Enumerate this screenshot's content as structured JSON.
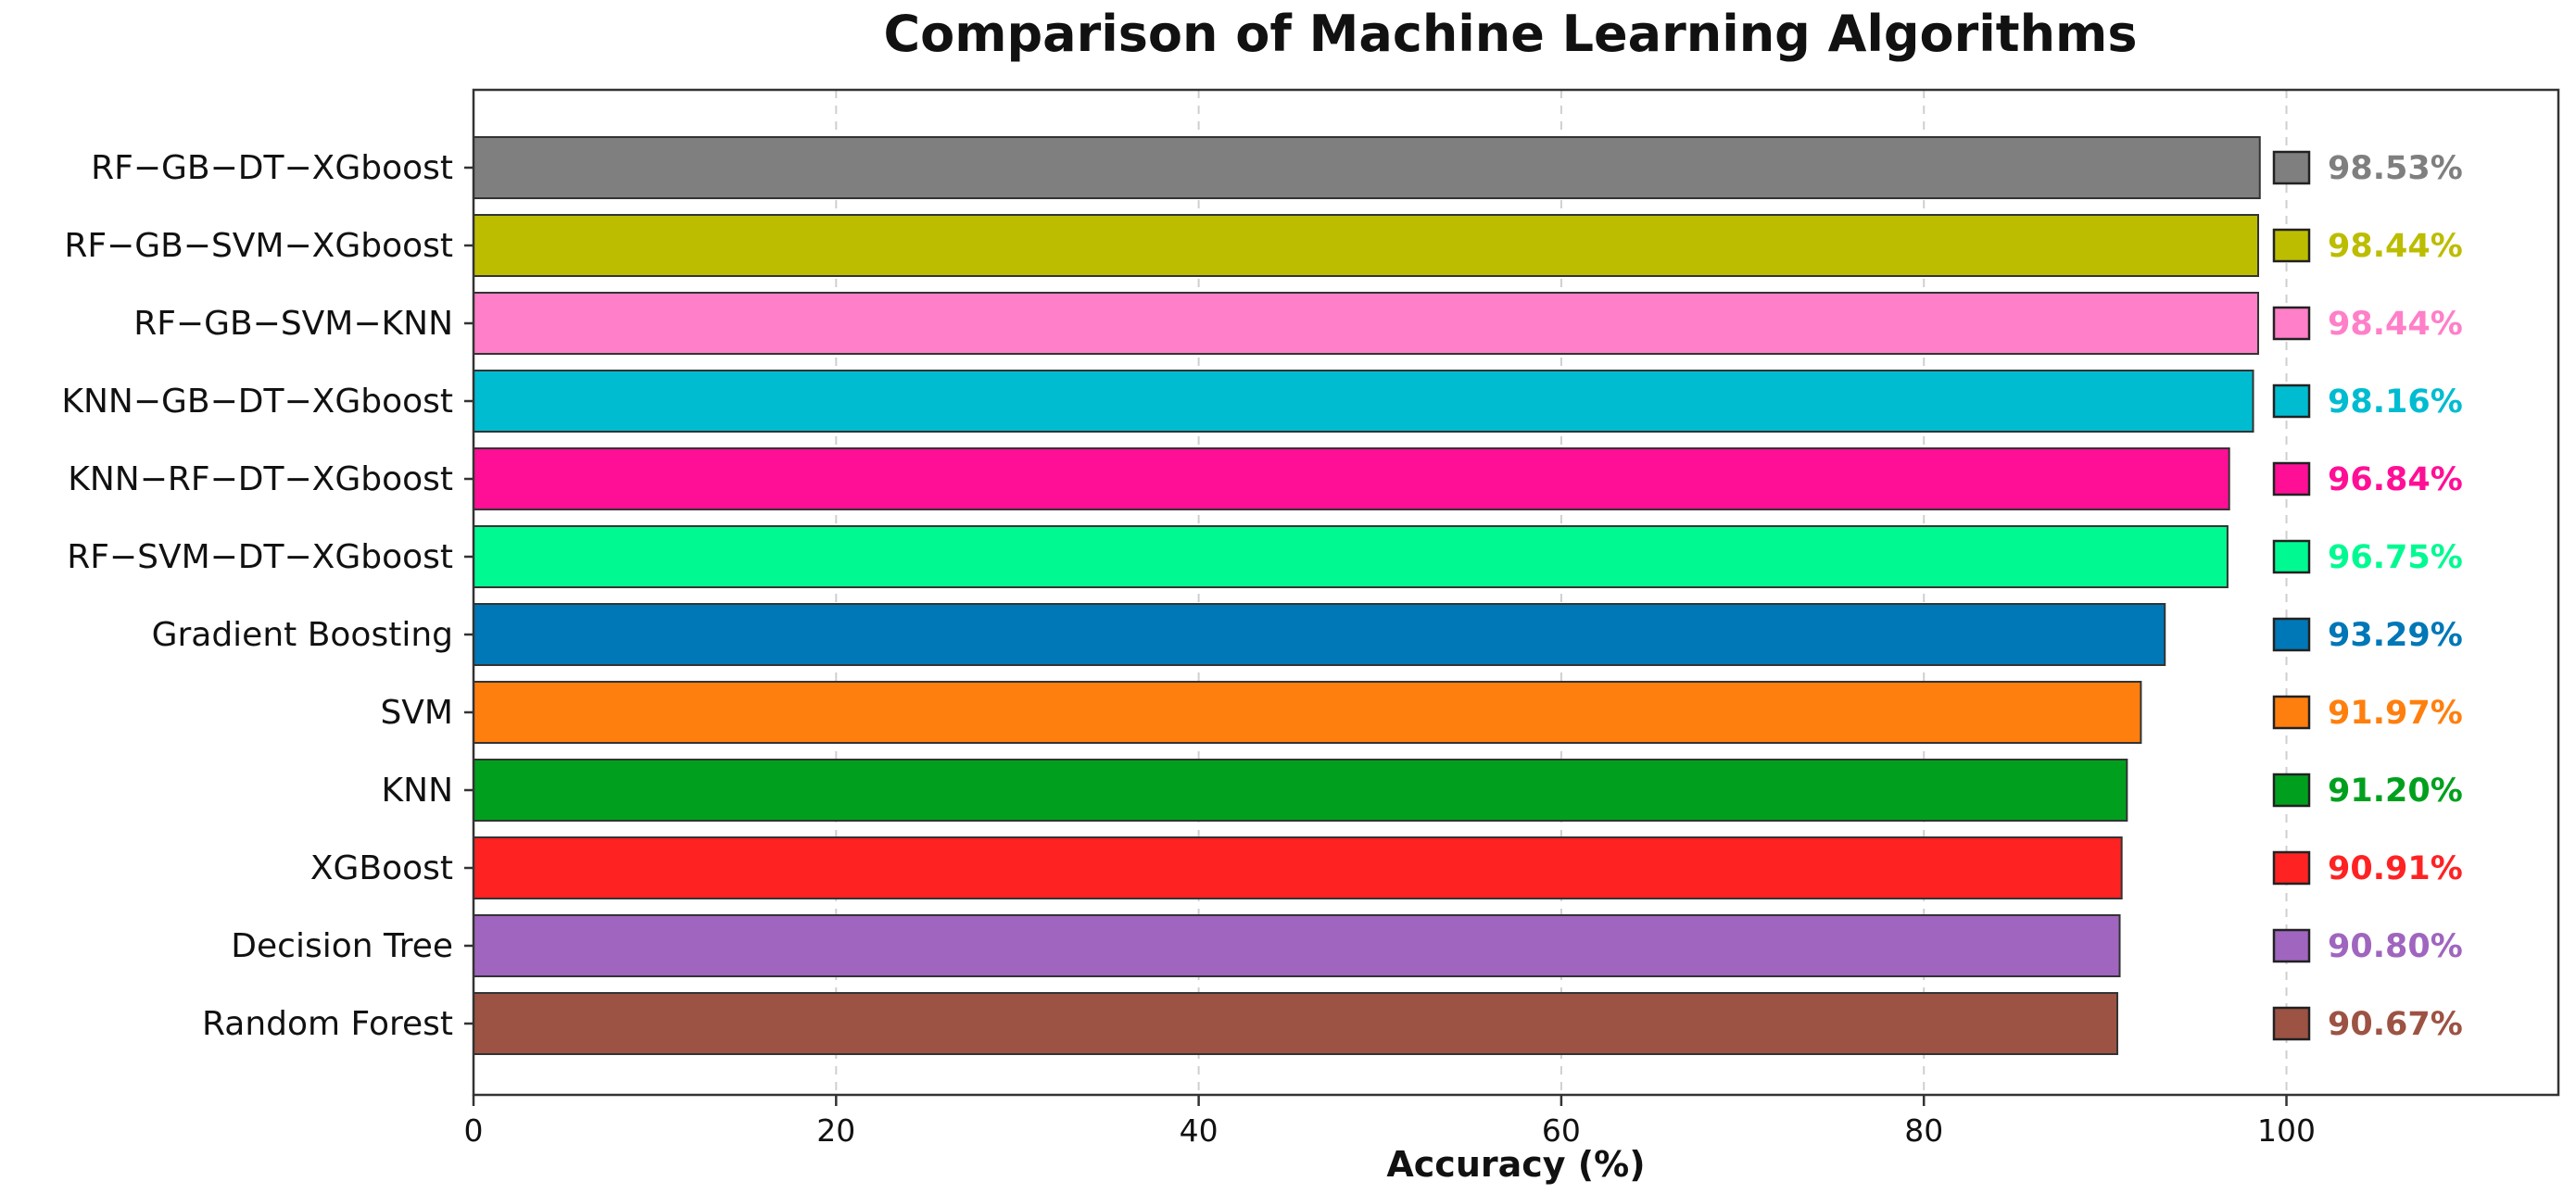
{
  "chart_data": {
    "type": "bar",
    "orientation": "horizontal",
    "title": "Comparison of Machine Learning Algorithms",
    "xlabel": "Accuracy (%)",
    "ylabel": "",
    "xlim": [
      0,
      115
    ],
    "xticks": [
      0,
      20,
      40,
      60,
      80,
      100
    ],
    "grid": "vertical dashed",
    "categories": [
      "RF−GB−DT−XGboost",
      "RF−GB−SVM−XGboost",
      "RF−GB−SVM−KNN",
      "KNN−GB−DT−XGboost",
      "KNN−RF−DT−XGboost",
      "RF−SVM−DT−XGboost",
      "Gradient Boosting",
      "SVM",
      "KNN",
      "XGBoost",
      "Decision Tree",
      "Random Forest"
    ],
    "values": [
      98.53,
      98.44,
      98.44,
      98.16,
      96.84,
      96.75,
      93.29,
      91.97,
      91.2,
      90.91,
      90.8,
      90.67
    ],
    "value_labels": [
      "98.53%",
      "98.44%",
      "98.44%",
      "98.16%",
      "96.84%",
      "96.75%",
      "93.29%",
      "91.97%",
      "91.20%",
      "90.91%",
      "90.80%",
      "90.67%"
    ],
    "colors": [
      "#7f7f7f",
      "#bcbd00",
      "#ff7fc8",
      "#00bcd0",
      "#ff0f96",
      "#00fa91",
      "#0077b6",
      "#ff7f0e",
      "#00a01e",
      "#ff2222",
      "#9f65bf",
      "#9c5343"
    ]
  }
}
